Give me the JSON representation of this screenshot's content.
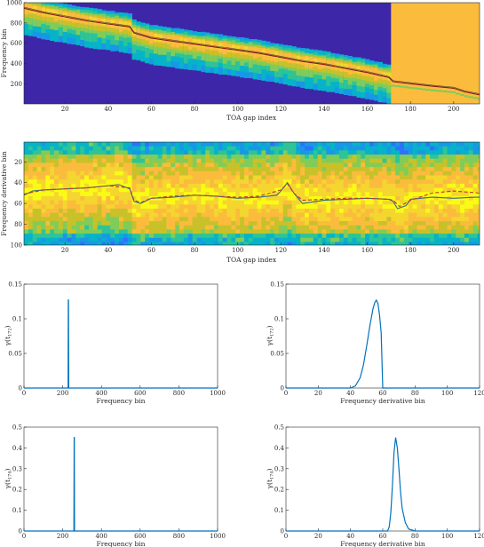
{
  "chart_data": [
    {
      "type": "heatmap",
      "xlabel": "TOA gap index",
      "ylabel": "Frequency bin",
      "xlim": [
        1,
        212
      ],
      "ylim": [
        1,
        1000
      ],
      "x_reversed": false,
      "y_reversed": false,
      "xticks": [
        20,
        40,
        60,
        80,
        100,
        120,
        140,
        160,
        180,
        200
      ],
      "yticks": [
        200,
        400,
        600,
        800,
        1000
      ],
      "colormap": "parula",
      "break_index": 172,
      "track": {
        "x": [
          1,
          10,
          20,
          30,
          40,
          50,
          52,
          60,
          70,
          80,
          90,
          100,
          110,
          120,
          130,
          140,
          150,
          160,
          170,
          172,
          180,
          190,
          200,
          205,
          212
        ],
        "y": [
          945,
          900,
          860,
          820,
          790,
          760,
          700,
          650,
          620,
          590,
          560,
          530,
          500,
          460,
          420,
          390,
          350,
          310,
          260,
          220,
          200,
          175,
          155,
          120,
          90
        ]
      },
      "track_color": "#8b1a1a"
    },
    {
      "type": "heatmap",
      "xlabel": "TOA gap index",
      "ylabel": "Frequency derivative bin",
      "xlim": [
        1,
        212
      ],
      "ylim": [
        1,
        100
      ],
      "y_reversed": true,
      "xticks": [
        20,
        40,
        60,
        80,
        100,
        120,
        140,
        160,
        180,
        200
      ],
      "yticks": [
        20,
        40,
        60,
        80,
        100
      ],
      "colormap": "parula",
      "break_index": 172,
      "series": [
        {
          "style": "solid",
          "color": "#3a6a8a",
          "x": [
            1,
            5,
            10,
            20,
            30,
            40,
            45,
            50,
            52,
            55,
            60,
            70,
            80,
            90,
            100,
            110,
            118,
            120,
            123,
            126,
            130,
            140,
            150,
            160,
            170,
            172,
            174,
            178,
            180,
            190,
            200,
            210,
            212
          ],
          "y": [
            52,
            48,
            47,
            46,
            45,
            43,
            42,
            46,
            58,
            60,
            55,
            54,
            52,
            53,
            55,
            54,
            52,
            48,
            40,
            50,
            60,
            57,
            56,
            55,
            56,
            58,
            65,
            62,
            56,
            54,
            55,
            54,
            54
          ]
        },
        {
          "style": "dashed",
          "color": "#c0392b",
          "x": [
            1,
            10,
            20,
            30,
            40,
            50,
            52,
            55,
            60,
            70,
            80,
            90,
            100,
            110,
            120,
            123,
            126,
            130,
            140,
            150,
            160,
            170,
            172,
            175,
            180,
            190,
            200,
            212
          ],
          "y": [
            51,
            47,
            46,
            45,
            43,
            45,
            57,
            59,
            55,
            53,
            52,
            53,
            54,
            53,
            47,
            41,
            50,
            57,
            56,
            55,
            55,
            56,
            57,
            63,
            57,
            50,
            48,
            50
          ]
        }
      ]
    },
    {
      "type": "line",
      "xlabel": "Frequency bin",
      "ylabel_main": "γ(t",
      "ylabel_sub": "172",
      "ylabel_tail": ")",
      "xlim": [
        0,
        1000
      ],
      "ylim": [
        0,
        0.15
      ],
      "xticks": [
        0,
        200,
        400,
        600,
        800,
        1000
      ],
      "yticks": [
        0,
        0.05,
        0.1,
        0.15
      ],
      "ytick_labels": [
        "0",
        "0.05",
        "0.1",
        "0.15"
      ],
      "x": [
        0,
        228,
        229,
        230,
        231,
        232,
        1000
      ],
      "y": [
        0,
        0,
        0.127,
        0.127,
        0,
        0,
        0
      ],
      "color": "#0072bd"
    },
    {
      "type": "line",
      "xlabel": "Frequency derivative bin",
      "ylabel_main": "γ(t",
      "ylabel_sub": "172",
      "ylabel_tail": ")",
      "xlim": [
        0,
        120
      ],
      "ylim": [
        0,
        0.15
      ],
      "xticks": [
        0,
        20,
        40,
        60,
        80,
        100,
        120
      ],
      "yticks": [
        0,
        0.05,
        0.1,
        0.15
      ],
      "ytick_labels": [
        "0",
        "0.05",
        "0.1",
        "0.15"
      ],
      "x": [
        0,
        40,
        43,
        46,
        48,
        50,
        52,
        54,
        55,
        56,
        57,
        58,
        59,
        60,
        61,
        120
      ],
      "y": [
        0,
        0,
        0.003,
        0.015,
        0.033,
        0.06,
        0.09,
        0.115,
        0.123,
        0.127,
        0.122,
        0.105,
        0.08,
        0,
        0,
        0
      ],
      "color": "#0072bd"
    },
    {
      "type": "line",
      "xlabel": "Frequency bin",
      "ylabel_main": "γ(t",
      "ylabel_sub": "174",
      "ylabel_tail": ")",
      "xlim": [
        0,
        1000
      ],
      "ylim": [
        0,
        0.5
      ],
      "xticks": [
        0,
        200,
        400,
        600,
        800,
        1000
      ],
      "yticks": [
        0,
        0.1,
        0.2,
        0.3,
        0.4,
        0.5
      ],
      "ytick_labels": [
        "0",
        "0.1",
        "0.2",
        "0.3",
        "0.4",
        "0.5"
      ],
      "x": [
        0,
        258,
        259,
        260,
        261,
        262,
        1000
      ],
      "y": [
        0,
        0,
        0.45,
        0.45,
        0,
        0,
        0
      ],
      "color": "#0072bd"
    },
    {
      "type": "line",
      "xlabel": "Frequency derivative bin",
      "ylabel_main": "γ(t",
      "ylabel_sub": "174",
      "ylabel_tail": ")",
      "xlim": [
        0,
        120
      ],
      "ylim": [
        0,
        0.5
      ],
      "xticks": [
        0,
        20,
        40,
        60,
        80,
        100,
        120
      ],
      "yticks": [
        0,
        0.1,
        0.2,
        0.3,
        0.4,
        0.5
      ],
      "ytick_labels": [
        "0",
        "0.1",
        "0.2",
        "0.3",
        "0.4",
        "0.5"
      ],
      "x": [
        0,
        63,
        64,
        65,
        66,
        67,
        68,
        69,
        70,
        71,
        72,
        74,
        76,
        80,
        120
      ],
      "y": [
        0,
        0,
        0.02,
        0.09,
        0.22,
        0.38,
        0.45,
        0.4,
        0.3,
        0.19,
        0.11,
        0.04,
        0.01,
        0,
        0
      ],
      "color": "#0072bd"
    }
  ]
}
